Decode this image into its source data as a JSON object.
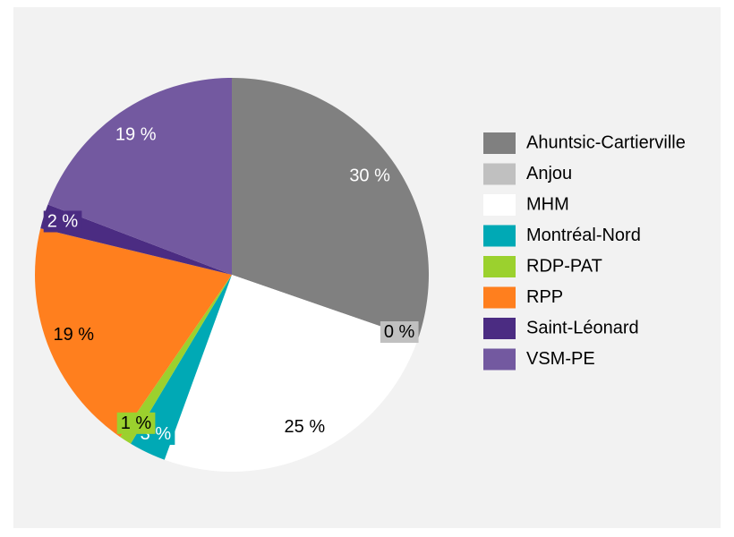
{
  "chart_data": {
    "type": "pie",
    "categories": [
      "Ahuntsic-Cartierville",
      "Anjou",
      "MHM",
      "Montréal-Nord",
      "RDP-PAT",
      "RPP",
      "Saint-Léonard",
      "VSM-PE"
    ],
    "values": [
      30,
      0,
      25,
      3,
      1,
      19,
      2,
      19
    ],
    "value_labels": [
      "30 %",
      "0 %",
      "25 %",
      "3 %",
      "1 %",
      "19 %",
      "2 %",
      "19 %"
    ],
    "colors": [
      "#808080",
      "#c0c0c0",
      "#ffffff",
      "#00a9b5",
      "#9bd12e",
      "#ff7f1e",
      "#4b2c82",
      "#7359a0"
    ],
    "legend": "right"
  }
}
